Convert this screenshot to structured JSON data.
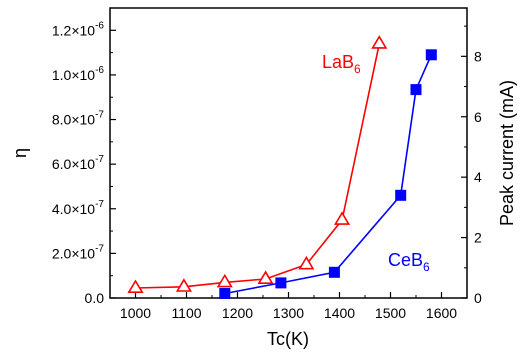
{
  "chart_data": {
    "type": "line",
    "xlabel": "Tc(K)",
    "ylabel_left": "η",
    "ylabel_right": "Peak current (mA)",
    "xlim": [
      950,
      1650
    ],
    "ylim_left": [
      0,
      1.3e-06
    ],
    "ylim_right": [
      0,
      9.6
    ],
    "x_ticks": [
      1000,
      1100,
      1200,
      1300,
      1400,
      1500,
      1600
    ],
    "x_tick_labels": [
      "1000",
      "1100",
      "1200",
      "1300",
      "1400",
      "1500",
      "1600"
    ],
    "y_left_ticks": [
      0,
      2e-07,
      4e-07,
      6e-07,
      8e-07,
      1e-06,
      1.2e-06
    ],
    "y_left_tick_labels": [
      {
        "mantissa": "0.0",
        "exponent": ""
      },
      {
        "mantissa": "2.0×10",
        "exponent": "-7"
      },
      {
        "mantissa": "4.0×10",
        "exponent": "-7"
      },
      {
        "mantissa": "6.0×10",
        "exponent": "-7"
      },
      {
        "mantissa": "8.0×10",
        "exponent": "-7"
      },
      {
        "mantissa": "1.0×10",
        "exponent": "-6"
      },
      {
        "mantissa": "1.2×10",
        "exponent": "-6"
      }
    ],
    "y_right_ticks": [
      0,
      2,
      4,
      6,
      8
    ],
    "y_right_tick_labels": [
      "0",
      "2",
      "4",
      "6",
      "8"
    ],
    "series": [
      {
        "name": "LaB",
        "name_subscript": "6",
        "axis": "left",
        "color": "#ff0000",
        "marker": "triangle-open",
        "x": [
          1000,
          1095,
          1175,
          1255,
          1335,
          1405,
          1478
        ],
        "y": [
          4.5e-08,
          5e-08,
          7e-08,
          8.5e-08,
          1.5e-07,
          3.5e-07,
          1.14e-06
        ]
      },
      {
        "name": "CeB",
        "name_subscript": "6",
        "axis": "right",
        "color": "#0000ff",
        "marker": "square-filled",
        "x": [
          1175,
          1285,
          1390,
          1520,
          1550,
          1580
        ],
        "y": [
          0.15,
          0.5,
          0.85,
          3.4,
          6.9,
          8.05
        ]
      }
    ]
  }
}
